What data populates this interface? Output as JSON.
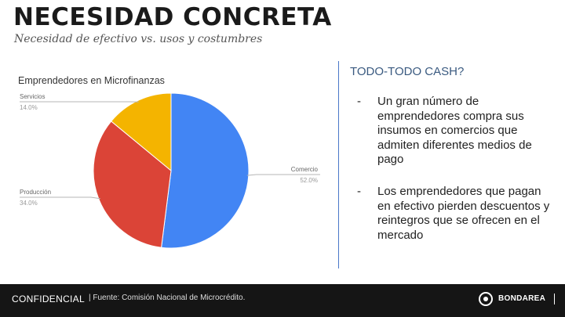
{
  "slide": {
    "title": "NECESIDAD CONCRETA",
    "subtitle": "Necesidad de efectivo vs. usos y costumbres"
  },
  "chart_data": {
    "type": "pie",
    "title": "Emprendedores en Microfinanzas",
    "slices": [
      {
        "label": "Comercio",
        "value": 52.0,
        "display": "52.0%",
        "color": "#4285F4"
      },
      {
        "label": "Producción",
        "value": 34.0,
        "display": "34.0%",
        "color": "#DB4437"
      },
      {
        "label": "Servicios",
        "value": 14.0,
        "display": "14.0%",
        "color": "#F4B400"
      }
    ]
  },
  "side": {
    "heading": "TODO-TODO CASH?",
    "bullets": [
      {
        "marker": "-",
        "text": "Un gran número de emprendedores compra sus insumos en comercios que admiten diferentes medios de pago"
      },
      {
        "marker": "-",
        "text": "Los emprendedores que pagan en efectivo pierden descuentos y reintegros que se ofrecen en el mercado"
      }
    ]
  },
  "footer": {
    "confidential": "CONFIDENCIAL",
    "source": "| Fuente: Comisión Nacional de Microcrédito.",
    "brand": "BONDAREA",
    "logo_icon": "bondarea-logo-icon"
  }
}
